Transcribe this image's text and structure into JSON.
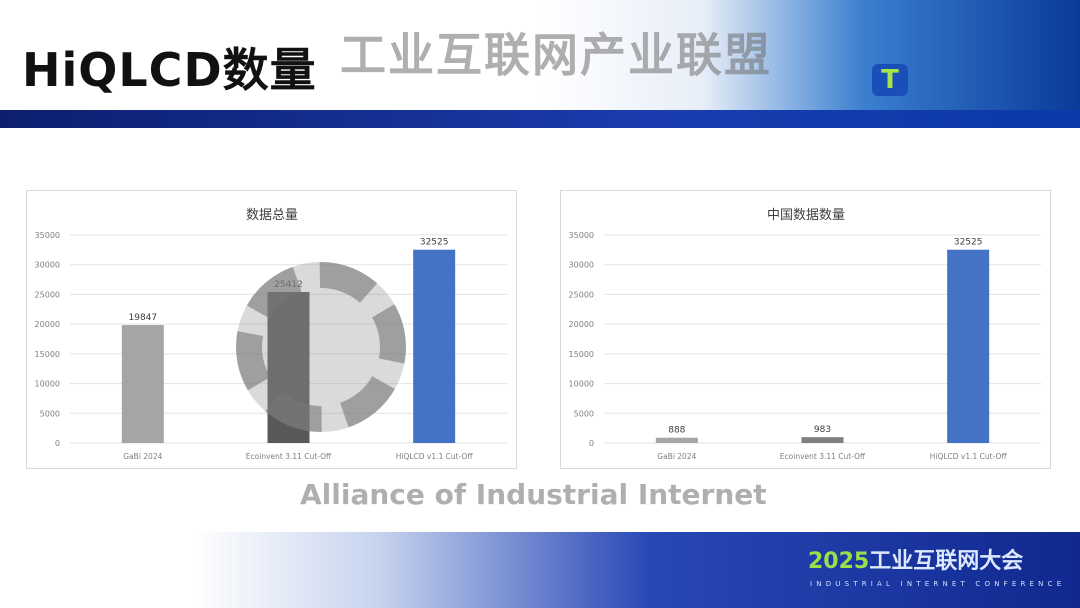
{
  "slide": {
    "title": "HiQLCD数量",
    "logo_letter": "T"
  },
  "footer": {
    "year": "2025",
    "event_cn": "工业互联网大会",
    "event_en": "INDUSTRIAL INTERNET CONFERENCE"
  },
  "watermark": {
    "cn": "工业互联网产业联盟",
    "en": "Alliance of Industrial Internet"
  },
  "colors": {
    "gray": "#a5a5a5",
    "dark": "#595959",
    "blue": "#4472c4"
  },
  "chart_data": [
    {
      "type": "bar",
      "title": "数据总量",
      "categories": [
        "GaBi 2024",
        "Ecoinvent 3.11 Cut-Off",
        "HiQLCD v1.1 Cut-Off"
      ],
      "values": [
        19847,
        25412,
        32525
      ],
      "data_labels": [
        "19847",
        "25412",
        "32525"
      ],
      "bar_colors": [
        "#a5a5a5",
        "#595959",
        "#4472c4"
      ],
      "ylim": [
        0,
        35000
      ],
      "yticks": [
        "0",
        "5000",
        "10000",
        "15000",
        "20000",
        "25000",
        "30000",
        "35000"
      ],
      "grid": true,
      "legend": "none"
    },
    {
      "type": "bar",
      "title": "中国数据数量",
      "categories": [
        "GaBi 2024",
        "Ecoinvent 3.11 Cut-Off",
        "HiQLCD v1.1 Cut-Off"
      ],
      "values": [
        888,
        983,
        32525
      ],
      "data_labels": [
        "888",
        "983",
        "32525"
      ],
      "bar_colors": [
        "#a5a5a5",
        "#7f7f7f",
        "#4472c4"
      ],
      "ylim": [
        0,
        35000
      ],
      "yticks": [
        "0",
        "5000",
        "10000",
        "15000",
        "20000",
        "25000",
        "30000",
        "35000"
      ],
      "grid": true,
      "legend": "none"
    }
  ]
}
